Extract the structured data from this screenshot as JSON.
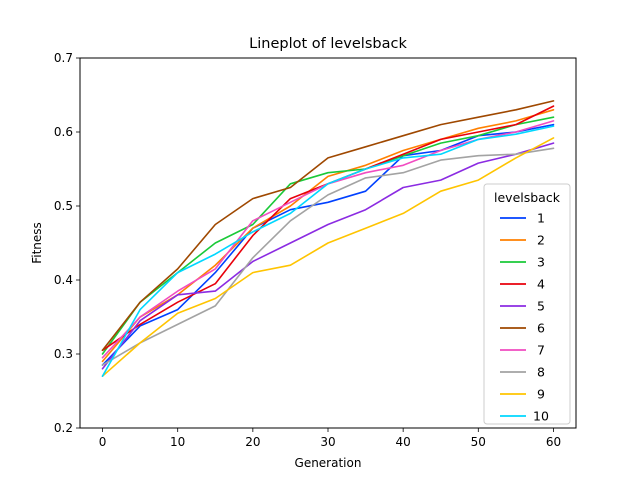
{
  "chart_data": {
    "type": "line",
    "title": "Lineplot of levelsback",
    "xlabel": "Generation",
    "ylabel": "Fitness",
    "xlim": [
      -3,
      63
    ],
    "ylim": [
      0.2,
      0.7
    ],
    "xticks": [
      "0",
      "10",
      "20",
      "30",
      "40",
      "50",
      "60"
    ],
    "yticks": [
      "0.2",
      "0.3",
      "0.4",
      "0.5",
      "0.6",
      "0.7"
    ],
    "grid": false,
    "legend": {
      "title": "levelsback",
      "position": "lower right"
    },
    "x": [
      0,
      5,
      10,
      15,
      20,
      25,
      30,
      35,
      40,
      45,
      50,
      55,
      60
    ],
    "series": [
      {
        "name": "1",
        "color": "#0040ff",
        "values": [
          0.285,
          0.338,
          0.36,
          0.41,
          0.47,
          0.495,
          0.505,
          0.52,
          0.568,
          0.575,
          0.595,
          0.6,
          0.61
        ]
      },
      {
        "name": "2",
        "color": "#ff8000",
        "values": [
          0.29,
          0.35,
          0.38,
          0.42,
          0.47,
          0.5,
          0.54,
          0.555,
          0.575,
          0.59,
          0.605,
          0.615,
          0.63
        ]
      },
      {
        "name": "3",
        "color": "#1ac938",
        "values": [
          0.3,
          0.37,
          0.41,
          0.45,
          0.475,
          0.53,
          0.545,
          0.55,
          0.568,
          0.585,
          0.595,
          0.61,
          0.62
        ]
      },
      {
        "name": "4",
        "color": "#e8000b",
        "values": [
          0.305,
          0.34,
          0.37,
          0.395,
          0.46,
          0.51,
          0.53,
          0.55,
          0.57,
          0.59,
          0.6,
          0.61,
          0.635
        ]
      },
      {
        "name": "5",
        "color": "#8b2be2",
        "values": [
          0.28,
          0.345,
          0.38,
          0.385,
          0.425,
          0.45,
          0.475,
          0.495,
          0.525,
          0.535,
          0.558,
          0.57,
          0.585
        ]
      },
      {
        "name": "6",
        "color": "#9f4800",
        "values": [
          0.305,
          0.37,
          0.415,
          0.475,
          0.51,
          0.525,
          0.565,
          0.58,
          0.595,
          0.61,
          0.62,
          0.63,
          0.642
        ]
      },
      {
        "name": "7",
        "color": "#f14cc1",
        "values": [
          0.295,
          0.35,
          0.385,
          0.415,
          0.48,
          0.505,
          0.53,
          0.545,
          0.555,
          0.575,
          0.59,
          0.6,
          0.615
        ]
      },
      {
        "name": "8",
        "color": "#a3a3a3",
        "values": [
          0.285,
          0.315,
          0.34,
          0.365,
          0.43,
          0.48,
          0.515,
          0.538,
          0.545,
          0.562,
          0.568,
          0.57,
          0.578
        ]
      },
      {
        "name": "9",
        "color": "#ffc400",
        "values": [
          0.27,
          0.315,
          0.355,
          0.375,
          0.41,
          0.42,
          0.45,
          0.47,
          0.49,
          0.52,
          0.535,
          0.565,
          0.592
        ]
      },
      {
        "name": "10",
        "color": "#00d7ff",
        "values": [
          0.27,
          0.36,
          0.41,
          0.435,
          0.465,
          0.49,
          0.53,
          0.55,
          0.565,
          0.57,
          0.59,
          0.597,
          0.608
        ]
      }
    ]
  }
}
